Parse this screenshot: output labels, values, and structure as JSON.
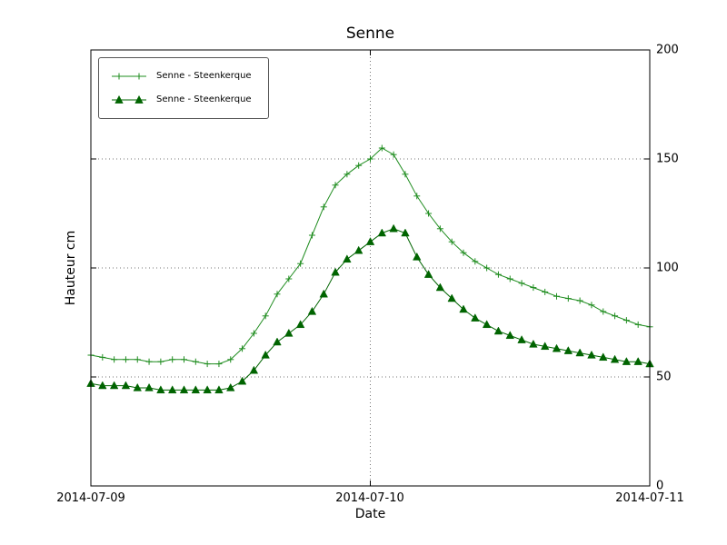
{
  "figure": {
    "title": "Senne",
    "xlabel": "Date",
    "ylabel": "Hauteur cm"
  },
  "chart_data": {
    "type": "line",
    "title": "Senne",
    "xlabel": "Date",
    "ylabel": "Hauteur cm",
    "grid": true,
    "legend_position": "upper-left",
    "xlim_hours": [
      0,
      48
    ],
    "ylim": [
      0,
      200
    ],
    "xticks": [
      {
        "pos": 0,
        "label": "2014-07-09"
      },
      {
        "pos": 24,
        "label": "2014-07-10"
      },
      {
        "pos": 48,
        "label": "2014-07-11"
      }
    ],
    "yticks": [
      {
        "pos": 0,
        "label": "0"
      },
      {
        "pos": 50,
        "label": "50"
      },
      {
        "pos": 100,
        "label": "100"
      },
      {
        "pos": 150,
        "label": "150"
      },
      {
        "pos": 200,
        "label": "200"
      }
    ],
    "gridlines": {
      "x": [
        24
      ],
      "y": [
        50,
        100,
        150
      ]
    },
    "x_hours": [
      0,
      1,
      2,
      3,
      4,
      5,
      6,
      7,
      8,
      9,
      10,
      11,
      12,
      13,
      14,
      15,
      16,
      17,
      18,
      19,
      20,
      21,
      22,
      23,
      24,
      25,
      26,
      27,
      28,
      29,
      30,
      31,
      32,
      33,
      34,
      35,
      36,
      37,
      38,
      39,
      40,
      41,
      42,
      43,
      44,
      45,
      46,
      47,
      48
    ],
    "series": [
      {
        "name": "Senne - Steenkerque",
        "marker": "plus",
        "color": "#1e8c1e",
        "values": [
          60,
          59,
          58,
          58,
          58,
          57,
          57,
          58,
          58,
          57,
          56,
          56,
          58,
          63,
          70,
          78,
          88,
          95,
          102,
          115,
          128,
          138,
          143,
          147,
          150,
          155,
          152,
          143,
          133,
          125,
          118,
          112,
          107,
          103,
          100,
          97,
          95,
          93,
          91,
          89,
          87,
          86,
          85,
          83,
          80,
          78,
          76,
          74,
          73
        ]
      },
      {
        "name": "Senne - Steenkerque",
        "marker": "triangle",
        "color": "#006400",
        "values": [
          47,
          46,
          46,
          46,
          45,
          45,
          44,
          44,
          44,
          44,
          44,
          44,
          45,
          48,
          53,
          60,
          66,
          70,
          74,
          80,
          88,
          98,
          104,
          108,
          112,
          116,
          118,
          116,
          105,
          97,
          91,
          86,
          81,
          77,
          74,
          71,
          69,
          67,
          65,
          64,
          63,
          62,
          61,
          60,
          59,
          58,
          57,
          57,
          56
        ]
      }
    ]
  }
}
